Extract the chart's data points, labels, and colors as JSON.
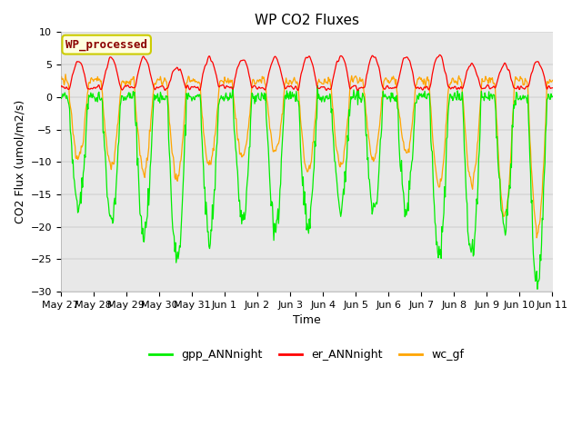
{
  "title": "WP CO2 Fluxes",
  "xlabel": "Time",
  "ylabel": "CO2 Flux (umol/m2/s)",
  "ylim": [
    -30,
    10
  ],
  "yticks": [
    -30,
    -25,
    -20,
    -15,
    -10,
    -5,
    0,
    5,
    10
  ],
  "fig_bg_color": "#ffffff",
  "plot_bg_color": "#e8e8e8",
  "grid_color": "#d8d8d8",
  "colors": {
    "gpp_ANNnight": "#00ee00",
    "er_ANNnight": "#ff0000",
    "wc_gf": "#ffa500"
  },
  "legend_labels": [
    "gpp_ANNnight",
    "er_ANNnight",
    "wc_gf"
  ],
  "annotation_text": "WP_processed",
  "annotation_color": "#8b0000",
  "annotation_bg": "#ffffe0",
  "annotation_border": "#cccc00",
  "tick_dates": [
    "May 27",
    "May 28",
    "May 29",
    "May 30",
    "May 31",
    "Jun 1",
    "Jun 2",
    "Jun 3",
    "Jun 4",
    "Jun 5",
    "Jun 6",
    "Jun 7",
    "Jun 8",
    "Jun 9",
    "Jun 10",
    "Jun 11"
  ],
  "title_fontsize": 11,
  "label_fontsize": 9,
  "tick_fontsize": 8
}
